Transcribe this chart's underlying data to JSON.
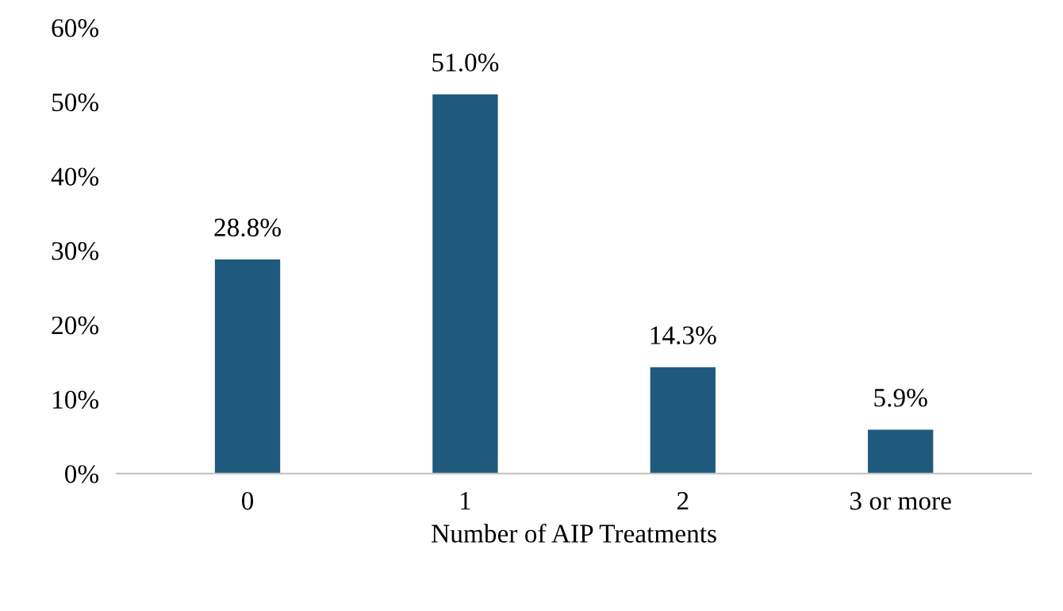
{
  "chart_data": {
    "type": "bar",
    "xlabel": "Number of AIP Treatments",
    "categories": [
      "0",
      "1",
      "2",
      "3 or more"
    ],
    "values": [
      28.8,
      51.0,
      14.3,
      5.9
    ],
    "value_labels": [
      "28.8%",
      "51.0%",
      "14.3%",
      "5.9%"
    ],
    "color": "#1f5a7c",
    "ylim": [
      0,
      60
    ],
    "yticks": [
      {
        "value": 0,
        "label": "0%"
      },
      {
        "value": 10,
        "label": "10%"
      },
      {
        "value": 20,
        "label": "20%"
      },
      {
        "value": 30,
        "label": "30%"
      },
      {
        "value": 40,
        "label": "40%"
      },
      {
        "value": 50,
        "label": "50%"
      },
      {
        "value": 60,
        "label": "60%"
      }
    ],
    "grid": false,
    "legend": false
  }
}
